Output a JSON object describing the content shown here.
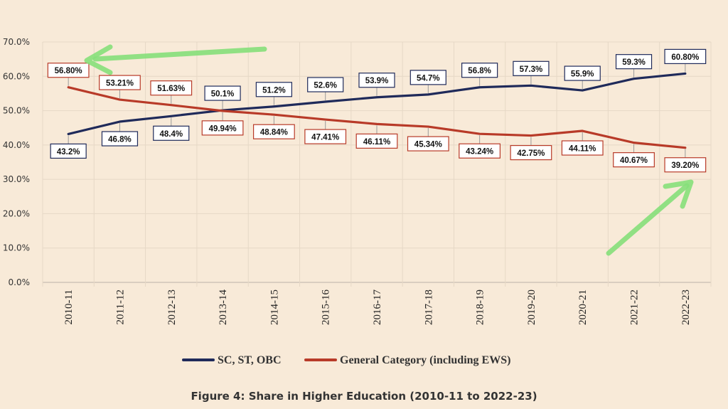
{
  "chart_data": {
    "type": "line",
    "title": "",
    "xlabel": "",
    "ylabel": "",
    "ylim": [
      0,
      70
    ],
    "y_ticks": [
      "0.0%",
      "10.0%",
      "20.0%",
      "30.0%",
      "40.0%",
      "50.0%",
      "60.0%",
      "70.0%"
    ],
    "categories": [
      "2010-11",
      "2011-12",
      "2012-13",
      "2013-14",
      "2014-15",
      "2015-16",
      "2016-17",
      "2017-18",
      "2018-19",
      "2019-20",
      "2020-21",
      "2021-22",
      "2022-23"
    ],
    "series": [
      {
        "name": "SC, ST, OBC",
        "color": "#1f2a5a",
        "values": [
          43.2,
          46.8,
          48.4,
          50.1,
          51.2,
          52.6,
          53.9,
          54.7,
          56.8,
          57.3,
          55.9,
          59.3,
          60.8
        ],
        "labels": [
          "43.2%",
          "46.8%",
          "48.4%",
          "50.1%",
          "51.2%",
          "52.6%",
          "53.9%",
          "54.7%",
          "56.8%",
          "57.3%",
          "55.9%",
          "59.3%",
          "60.80%"
        ],
        "label_pos": [
          "below",
          "below",
          "below",
          "above",
          "above",
          "above",
          "above",
          "above",
          "above",
          "above",
          "above",
          "above",
          "above"
        ]
      },
      {
        "name": "General Category (including EWS)",
        "color": "#b83a28",
        "values": [
          56.8,
          53.21,
          51.63,
          49.94,
          48.84,
          47.41,
          46.11,
          45.34,
          43.24,
          42.75,
          44.11,
          40.67,
          39.2
        ],
        "labels": [
          "56.80%",
          "53.21%",
          "51.63%",
          "49.94%",
          "48.84%",
          "47.41%",
          "46.11%",
          "45.34%",
          "43.24%",
          "42.75%",
          "44.11%",
          "40.67%",
          "39.20%"
        ],
        "label_pos": [
          "above",
          "above",
          "above",
          "below",
          "below",
          "below",
          "below",
          "below",
          "below",
          "below",
          "below",
          "below",
          "below"
        ]
      }
    ],
    "grid": true,
    "legend": "bottom",
    "annotations": [
      "green arrow pointing to 56.80%",
      "green arrow pointing to 39.20%"
    ]
  },
  "caption": "Figure 4: Share in Higher Education (2010-11 to 2022-23)"
}
